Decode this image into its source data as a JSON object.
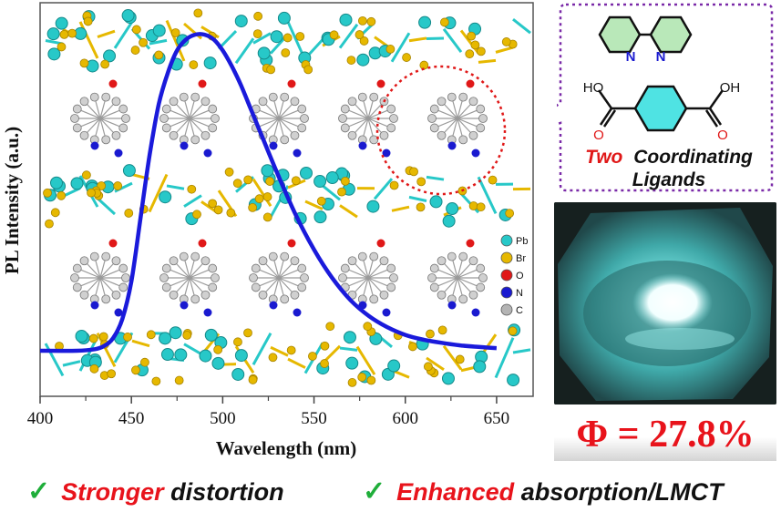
{
  "chart_data": {
    "type": "line",
    "xlabel": "Wavelength (nm)",
    "ylabel": "PL Intensity (a.u.)",
    "xlim": [
      400,
      670
    ],
    "x_ticks": [
      "400",
      "450",
      "500",
      "550",
      "600",
      "650"
    ],
    "series": [
      {
        "color": "#1a1adb",
        "x": [
          400,
          420,
          430,
          435,
          440,
          445,
          450,
          455,
          460,
          465,
          470,
          475,
          480,
          485,
          490,
          495,
          500,
          505,
          510,
          515,
          520,
          530,
          540,
          550,
          560,
          570,
          580,
          590,
          600,
          610,
          620,
          630,
          640,
          650
        ],
        "y": [
          0.0,
          0.0,
          0.005,
          0.015,
          0.04,
          0.1,
          0.22,
          0.42,
          0.62,
          0.78,
          0.88,
          0.95,
          0.985,
          1.0,
          1.0,
          0.985,
          0.95,
          0.9,
          0.84,
          0.77,
          0.7,
          0.56,
          0.43,
          0.32,
          0.23,
          0.16,
          0.11,
          0.075,
          0.05,
          0.035,
          0.025,
          0.017,
          0.012,
          0.008
        ]
      }
    ]
  },
  "legend": [
    {
      "label": "Pb",
      "color": "#27c8c8"
    },
    {
      "label": "Br",
      "color": "#e6b800"
    },
    {
      "label": "O",
      "color": "#e01818"
    },
    {
      "label": "N",
      "color": "#1a1ad0"
    },
    {
      "label": "C",
      "color": "#b4b4b4"
    }
  ],
  "ligand_panel": {
    "n_label_1": "N",
    "n_label_2": "N",
    "ho_label": "HO",
    "oh_label": "OH",
    "o_label_1": "O",
    "o_label_2": "O",
    "caption_red": "Two",
    "caption_rest": "Coordinating",
    "caption_line2": "Ligands"
  },
  "quantum_yield": "Φ = 27.8%",
  "bottom_bar": {
    "item1_red": "Stronger",
    "item1_black": "distortion",
    "item2_red": "Enhanced",
    "item2_black": "absorption/LMCT",
    "check": "✓"
  }
}
